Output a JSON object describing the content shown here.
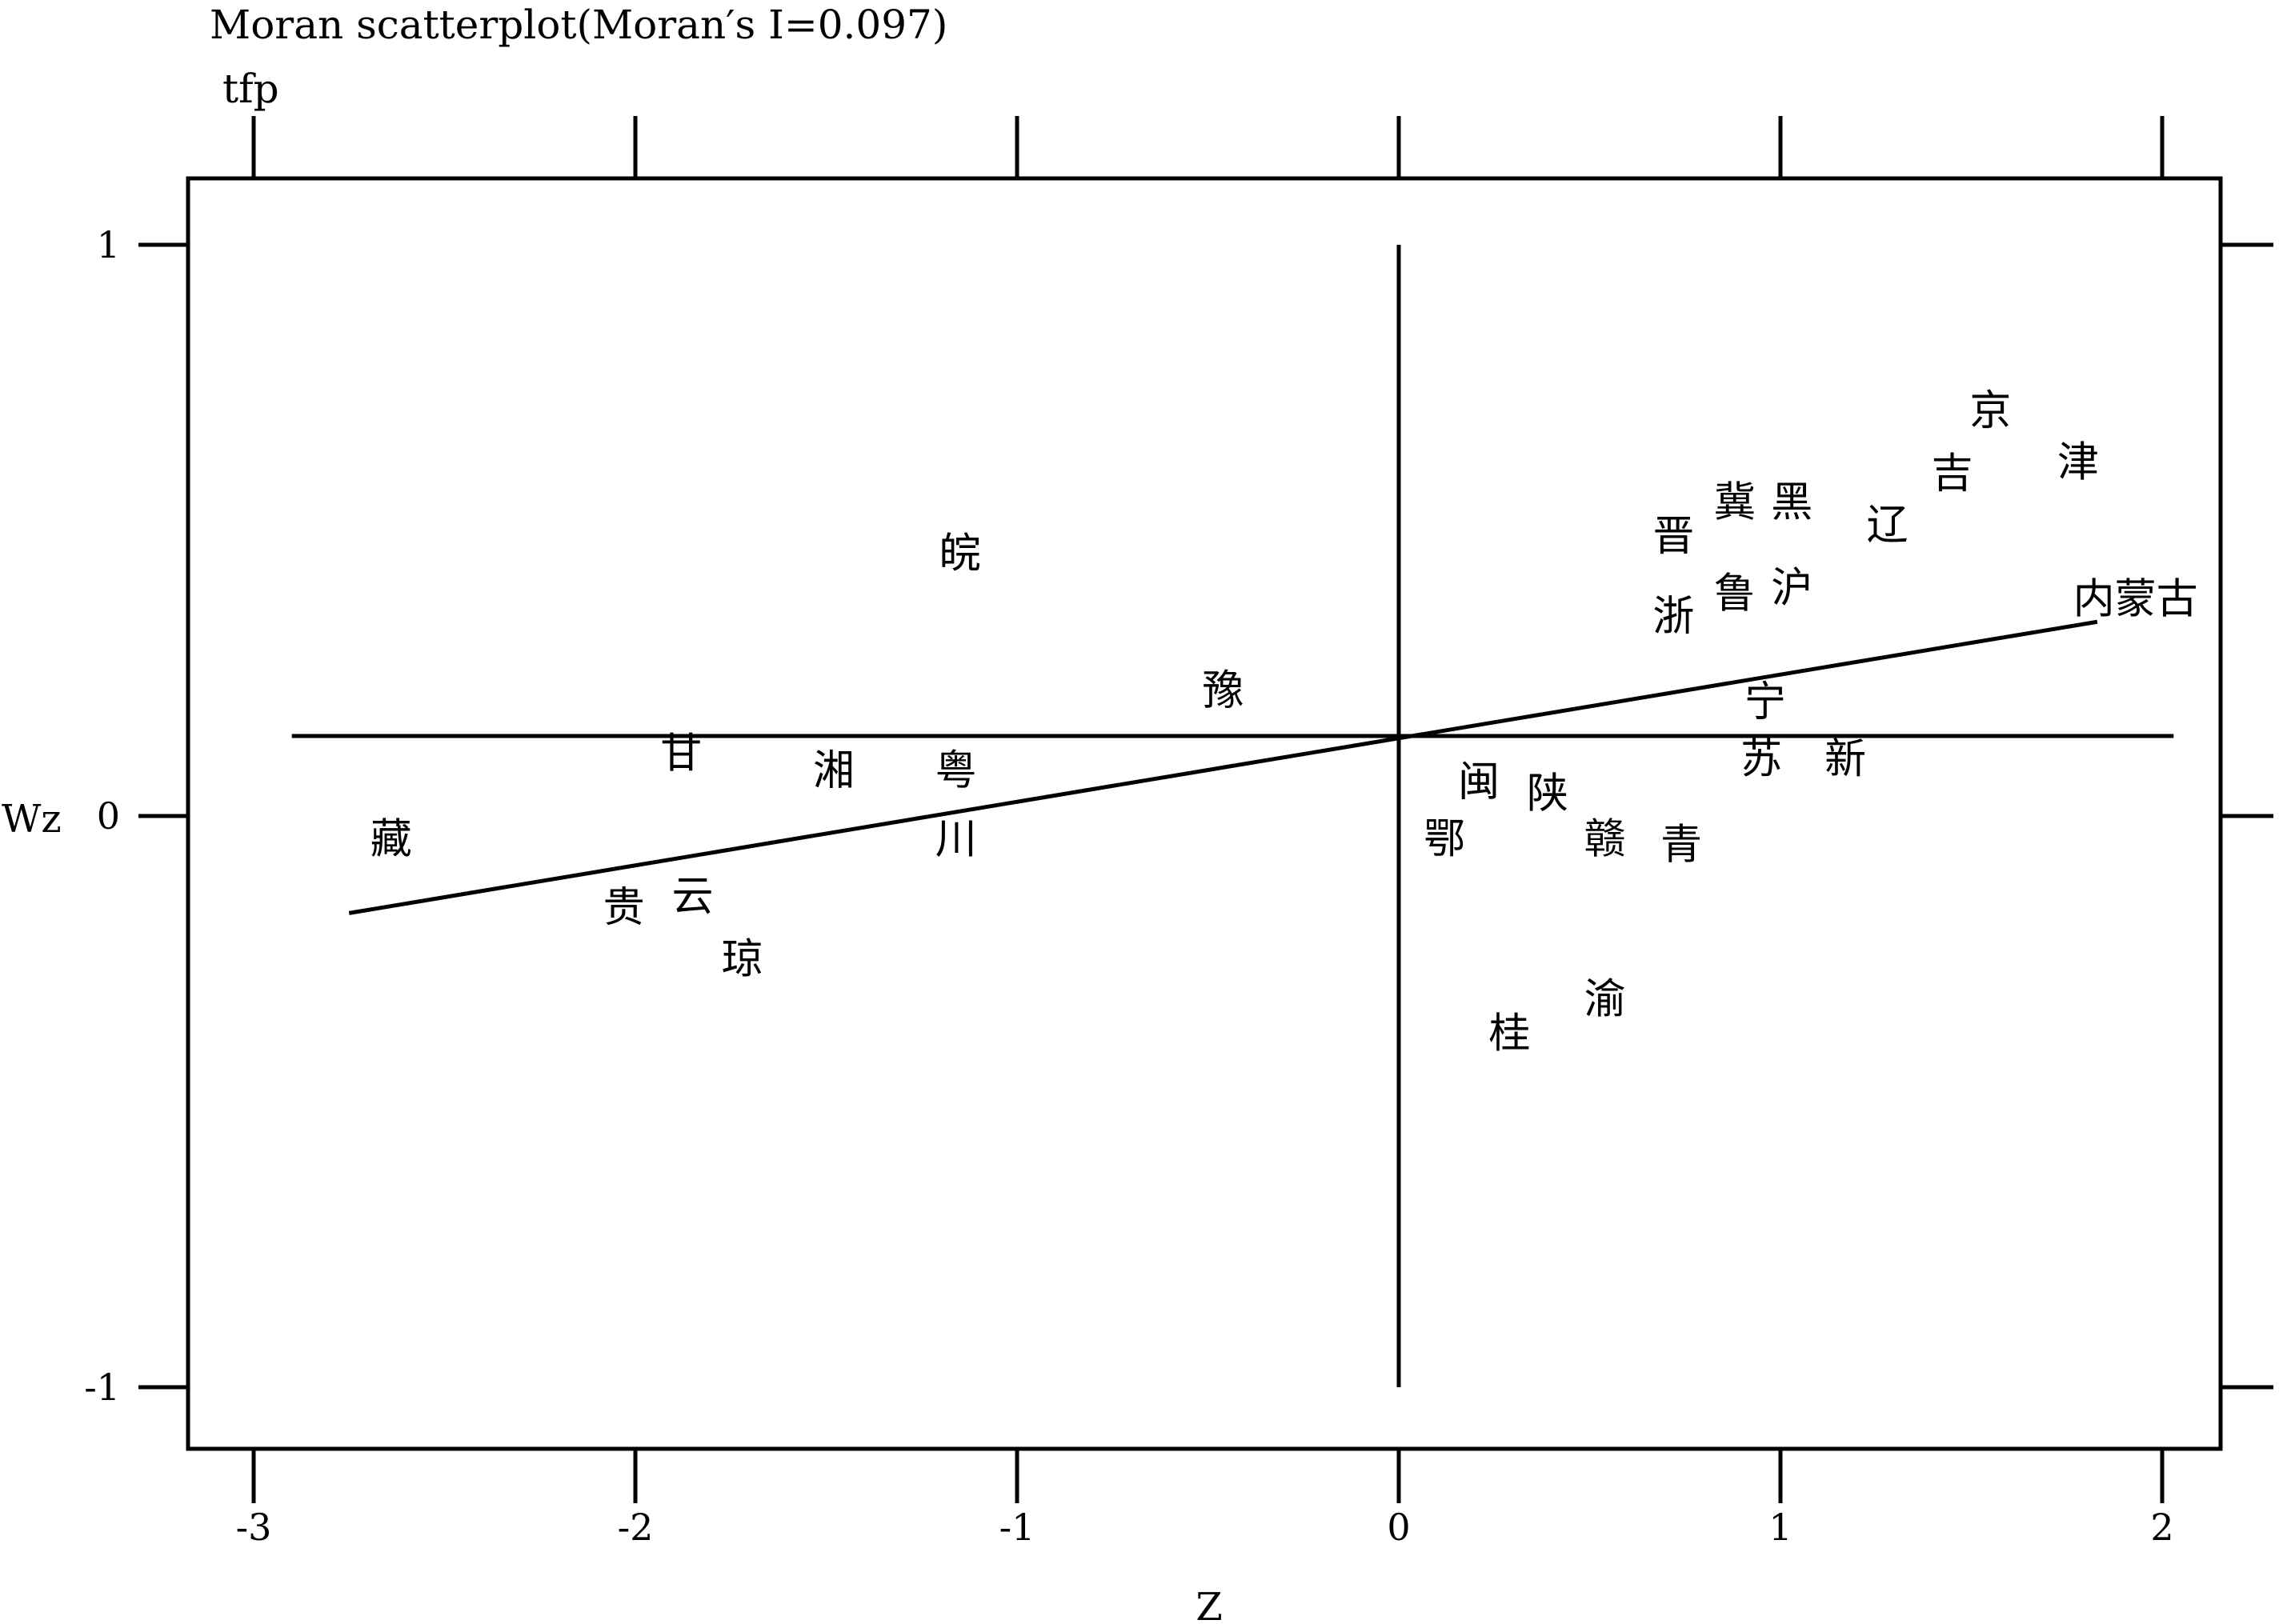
{
  "chart_data": {
    "type": "scatter",
    "title": "Moran scatterplot(Moran′s I=0.097)",
    "subtitle": "tfp",
    "xlabel": "Z",
    "ylabel": "Wz",
    "xlim": [
      -3.2,
      2.15
    ],
    "ylim": [
      -1.12,
      1.1
    ],
    "x_ticks": [
      -3,
      -2,
      -1,
      0,
      1,
      2
    ],
    "x_tick_labels": [
      "-3",
      "-2",
      "-1",
      "0",
      "1",
      "2"
    ],
    "y_ticks": [
      -1,
      0,
      1
    ],
    "y_tick_labels": [
      "-1",
      "0",
      "1"
    ],
    "grid": false,
    "mean_lines": {
      "x": 0,
      "y": 0.14
    },
    "fit_line": {
      "x": [
        -2.75,
        1.83
      ],
      "y": [
        -0.17,
        0.34
      ]
    },
    "points": [
      {
        "label": "京",
        "x": 1.55,
        "y": 0.71
      },
      {
        "label": "津",
        "x": 1.78,
        "y": 0.62
      },
      {
        "label": "吉",
        "x": 1.45,
        "y": 0.6
      },
      {
        "label": "冀",
        "x": 0.88,
        "y": 0.55
      },
      {
        "label": "黑",
        "x": 1.03,
        "y": 0.55
      },
      {
        "label": "辽",
        "x": 1.28,
        "y": 0.51
      },
      {
        "label": "晋",
        "x": 0.72,
        "y": 0.49
      },
      {
        "label": "皖",
        "x": -1.15,
        "y": 0.46
      },
      {
        "label": "沪",
        "x": 1.03,
        "y": 0.4
      },
      {
        "label": "鲁",
        "x": 0.88,
        "y": 0.39
      },
      {
        "label": "内蒙古",
        "x": 1.93,
        "y": 0.38
      },
      {
        "label": "浙",
        "x": 0.72,
        "y": 0.35
      },
      {
        "label": "豫",
        "x": -0.46,
        "y": 0.22
      },
      {
        "label": "宁",
        "x": 0.96,
        "y": 0.2
      },
      {
        "label": "甘",
        "x": -1.88,
        "y": 0.11
      },
      {
        "label": "苏",
        "x": 0.95,
        "y": 0.1
      },
      {
        "label": "新",
        "x": 1.17,
        "y": 0.1
      },
      {
        "label": "湘",
        "x": -1.48,
        "y": 0.08
      },
      {
        "label": "粤",
        "x": -1.16,
        "y": 0.08
      },
      {
        "label": "闽",
        "x": 0.21,
        "y": 0.06
      },
      {
        "label": "陕",
        "x": 0.39,
        "y": 0.04
      },
      {
        "label": "川",
        "x": -1.16,
        "y": -0.04
      },
      {
        "label": "藏",
        "x": -2.64,
        "y": -0.04
      },
      {
        "label": "鄂",
        "x": 0.12,
        "y": -0.04
      },
      {
        "label": "赣",
        "x": 0.54,
        "y": -0.04
      },
      {
        "label": "青",
        "x": 0.74,
        "y": -0.05
      },
      {
        "label": "云",
        "x": -1.85,
        "y": -0.14
      },
      {
        "label": "贵",
        "x": -2.03,
        "y": -0.16
      },
      {
        "label": "琼",
        "x": -1.72,
        "y": -0.25
      },
      {
        "label": "渝",
        "x": 0.54,
        "y": -0.32
      },
      {
        "label": "桂",
        "x": 0.29,
        "y": -0.38
      }
    ]
  }
}
